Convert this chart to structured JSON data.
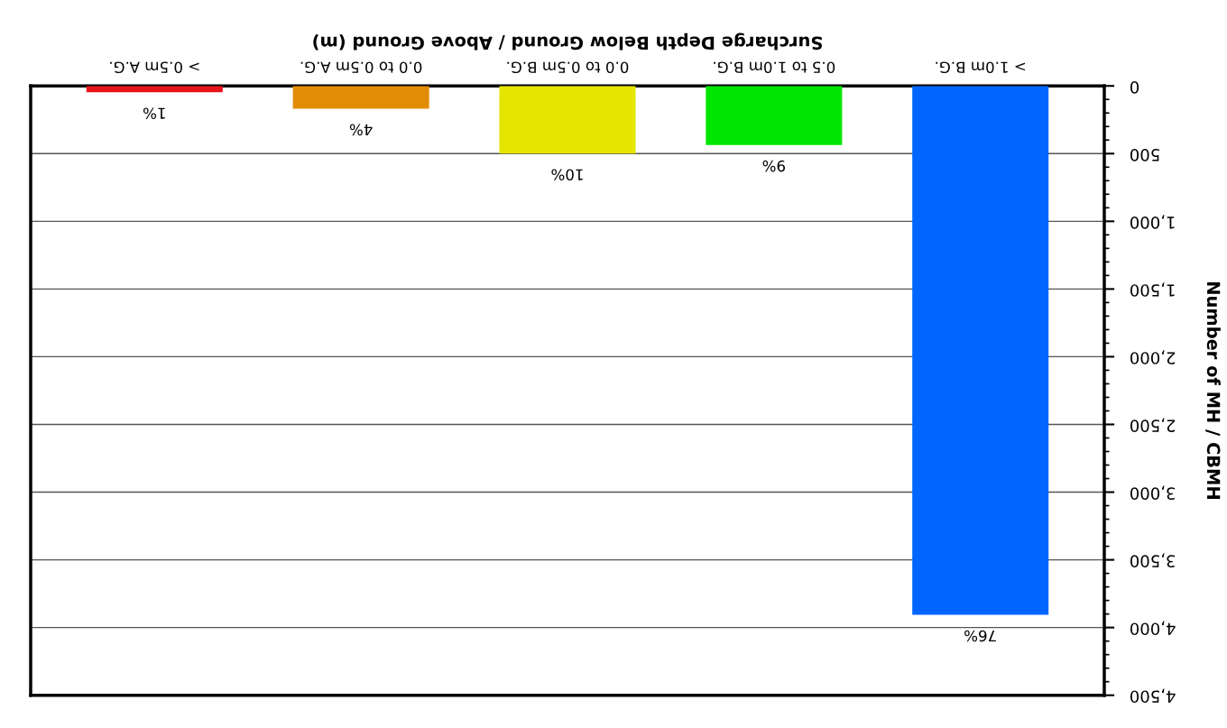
{
  "chart_data": {
    "type": "bar",
    "xlabel": "Surcharge Depth Below Ground / Above Ground (m)",
    "ylabel": "Number of MH / CBMH",
    "categories": [
      "> 0.5m A.G.",
      "0.0 to 0.5m A.G.",
      "0.0 to 0.5m B.G.",
      "0.5 to 1.0m B.G.",
      "> 1.0m B.G."
    ],
    "values": [
      47,
      168,
      500,
      436,
      3906
    ],
    "colors": [
      "#e8141c",
      "#e28c05",
      "#e5e500",
      "#00e600",
      "#0066ff"
    ],
    "annotations": [
      {
        "text": "1%",
        "x": "> 0.5m A.G.",
        "y": 47
      },
      {
        "text": "4%",
        "x": "0.0 to 0.5m A.G.",
        "y": 168
      },
      {
        "text": "10%",
        "x": "0.0 to 0.5m B.G.",
        "y": 500
      },
      {
        "text": "9%",
        "x": "0.5 to 1.0m B.G.",
        "y": 436
      },
      {
        "text": "76%",
        "x": "> 1.0m B.G.",
        "y": 3906
      }
    ],
    "ylim": [
      4500,
      0
    ],
    "yticks": [
      {
        "value": 0,
        "label": "0"
      },
      {
        "value": 500,
        "label": "500"
      },
      {
        "value": 1000,
        "label": "1,000"
      },
      {
        "value": 1500,
        "label": "1,500"
      },
      {
        "value": 2000,
        "label": "2,000"
      },
      {
        "value": 2500,
        "label": "2,500"
      },
      {
        "value": 3000,
        "label": "3,000"
      },
      {
        "value": 3500,
        "label": "3,500"
      },
      {
        "value": 4000,
        "label": "4,000"
      },
      {
        "value": 4500,
        "label": "4,500"
      }
    ],
    "grid": "y",
    "legend": false
  }
}
